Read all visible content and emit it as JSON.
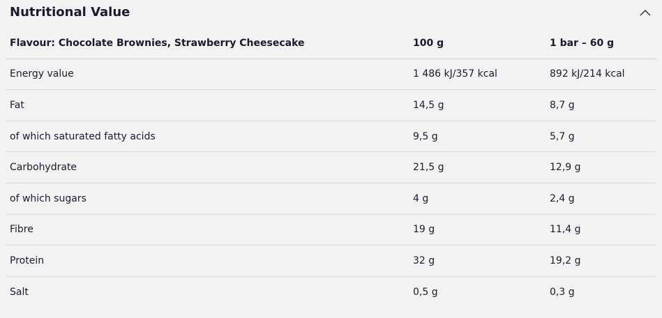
{
  "header": {
    "title": "Nutritional Value"
  },
  "table": {
    "columns": [
      "Flavour: Chocolate Brownies, Strawberry Cheesecake",
      "100 g",
      "1 bar – 60 g"
    ],
    "rows": [
      [
        "Energy value",
        "1 486 kJ/357 kcal",
        "892 kJ/214 kcal"
      ],
      [
        "Fat",
        "14,5 g",
        "8,7 g"
      ],
      [
        "of which saturated fatty acids",
        "9,5 g",
        "5,7 g"
      ],
      [
        "Carbohydrate",
        "21,5 g",
        "12,9 g"
      ],
      [
        "of which sugars",
        "4 g",
        "2,4 g"
      ],
      [
        "Fibre",
        "19 g",
        "11,4 g"
      ],
      [
        "Protein",
        "32 g",
        "19,2 g"
      ],
      [
        "Salt",
        "0,5 g",
        "0,3 g"
      ]
    ]
  }
}
